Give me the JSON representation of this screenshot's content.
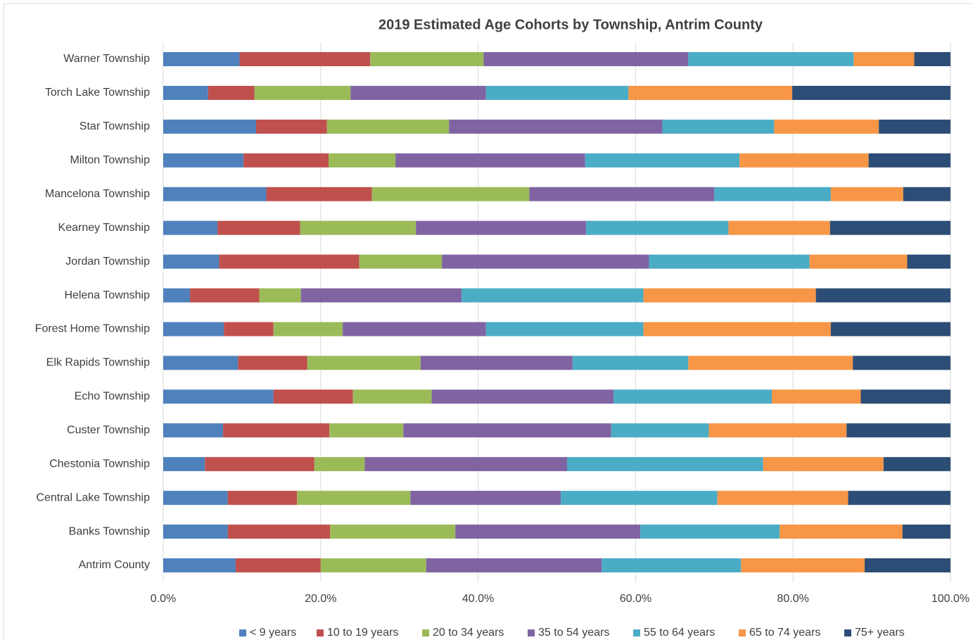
{
  "chart_data": {
    "type": "stacked-barh",
    "title": "2019 Estimated Age Cohorts by Township, Antrim County",
    "categories": [
      "Warner Township",
      "Torch Lake Township",
      "Star Township",
      "Milton Township",
      "Mancelona Township",
      "Kearney Township",
      "Jordan Township",
      "Helena Township",
      "Forest Home Township",
      "Elk Rapids Township",
      "Echo Township",
      "Custer Township",
      "Chestonia Township",
      "Central Lake Township",
      "Banks Township",
      "Antrim County"
    ],
    "series": [
      {
        "name": "< 9 years",
        "color": "#4f81bd",
        "values": [
          9.7,
          5.7,
          11.8,
          10.2,
          13.1,
          6.9,
          7.1,
          3.4,
          7.7,
          9.5,
          14.0,
          7.6,
          5.3,
          8.2,
          8.2,
          9.2
        ]
      },
      {
        "name": "10 to 19 years",
        "color": "#c0504d",
        "values": [
          16.6,
          5.9,
          9.0,
          10.8,
          13.4,
          10.5,
          17.8,
          8.8,
          6.3,
          8.8,
          10.1,
          13.5,
          13.9,
          8.8,
          13.0,
          10.8
        ]
      },
      {
        "name": "20 to 34 years",
        "color": "#9bbb59",
        "values": [
          14.4,
          12.2,
          15.5,
          8.5,
          20.0,
          14.7,
          10.5,
          5.3,
          8.8,
          14.4,
          10.0,
          9.4,
          6.4,
          14.4,
          15.9,
          13.4
        ]
      },
      {
        "name": "35 to 54 years",
        "color": "#8064a2",
        "values": [
          26.0,
          17.2,
          27.1,
          24.1,
          23.5,
          21.6,
          26.3,
          20.4,
          18.2,
          19.3,
          23.1,
          26.4,
          25.7,
          19.1,
          23.5,
          22.3
        ]
      },
      {
        "name": "55 to 64 years",
        "color": "#4bacc6",
        "values": [
          21.0,
          18.1,
          14.2,
          19.6,
          14.8,
          18.1,
          20.4,
          23.1,
          20.0,
          14.7,
          20.1,
          12.4,
          24.9,
          19.9,
          17.7,
          17.7
        ]
      },
      {
        "name": "65 to 74 years",
        "color": "#f79646",
        "values": [
          7.7,
          20.8,
          13.3,
          16.4,
          9.2,
          12.9,
          12.4,
          21.9,
          23.8,
          20.9,
          11.3,
          17.5,
          15.3,
          16.6,
          15.6,
          15.7
        ]
      },
      {
        "name": "75+ years",
        "color": "#2c4d75",
        "values": [
          4.6,
          20.1,
          9.1,
          10.4,
          6.0,
          15.3,
          5.5,
          17.1,
          15.2,
          12.4,
          11.4,
          13.2,
          8.5,
          13.0,
          6.1,
          10.9
        ]
      }
    ],
    "xlim": [
      0,
      100
    ],
    "xticks": [
      {
        "value": 0,
        "label": "0.0%"
      },
      {
        "value": 20,
        "label": "20.0%"
      },
      {
        "value": 40,
        "label": "40.0%"
      },
      {
        "value": 60,
        "label": "60.0%"
      },
      {
        "value": 80,
        "label": "80.0%"
      },
      {
        "value": 100,
        "label": "100.0%"
      }
    ],
    "grid": true,
    "legend": "bottom"
  }
}
